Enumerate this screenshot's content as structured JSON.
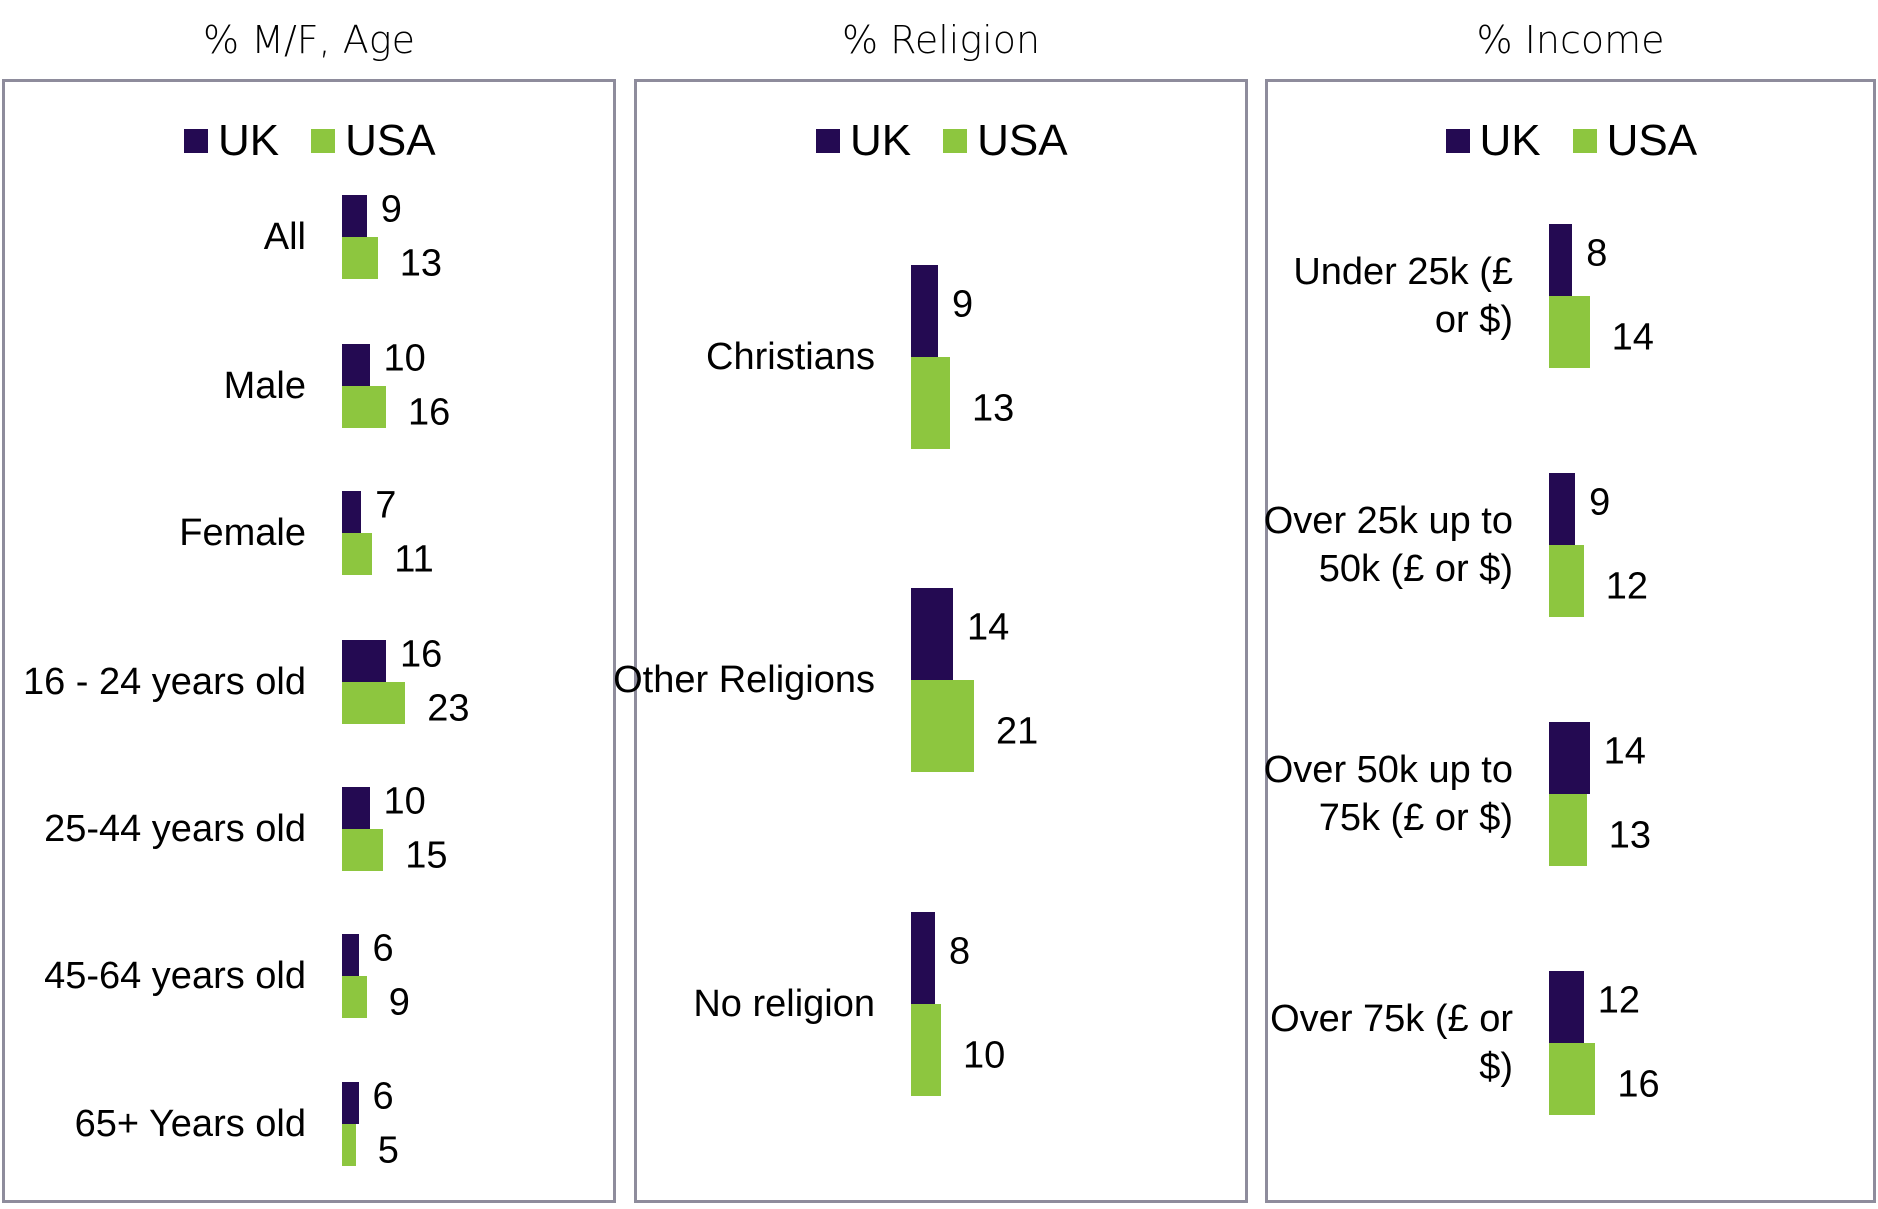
{
  "colors": {
    "UK": "#240a52",
    "USA": "#8dc63f"
  },
  "chart_data": [
    {
      "type": "bar",
      "title": "% M/F, Age",
      "legend": [
        "UK",
        "USA"
      ],
      "legend_position": "top",
      "categories": [
        "All",
        "Male",
        "Female",
        "16 - 24 years old",
        "25-44 years old",
        "45-64 years old",
        "65+ Years old"
      ],
      "series": [
        {
          "name": "UK",
          "values": [
            9,
            10,
            7,
            16,
            10,
            6,
            6
          ]
        },
        {
          "name": "USA",
          "values": [
            13,
            16,
            11,
            23,
            15,
            9,
            5
          ]
        }
      ]
    },
    {
      "type": "bar",
      "title": "% Religion",
      "legend": [
        "UK",
        "USA"
      ],
      "legend_position": "top",
      "categories": [
        "Christians",
        "Other Religions",
        "No religion"
      ],
      "series": [
        {
          "name": "UK",
          "values": [
            9,
            14,
            8
          ]
        },
        {
          "name": "USA",
          "values": [
            13,
            21,
            10
          ]
        }
      ]
    },
    {
      "type": "bar",
      "title": "% Income",
      "legend": [
        "UK",
        "USA"
      ],
      "legend_position": "top",
      "categories": [
        "Under 25k (£ or $)",
        "Over 25k up to 50k (£ or $)",
        "Over 50k  up to 75k (£ or $)",
        "Over 75k (£ or $)"
      ],
      "series": [
        {
          "name": "UK",
          "values": [
            8,
            9,
            14,
            12
          ]
        },
        {
          "name": "USA",
          "values": [
            14,
            12,
            13,
            16
          ]
        }
      ]
    }
  ]
}
